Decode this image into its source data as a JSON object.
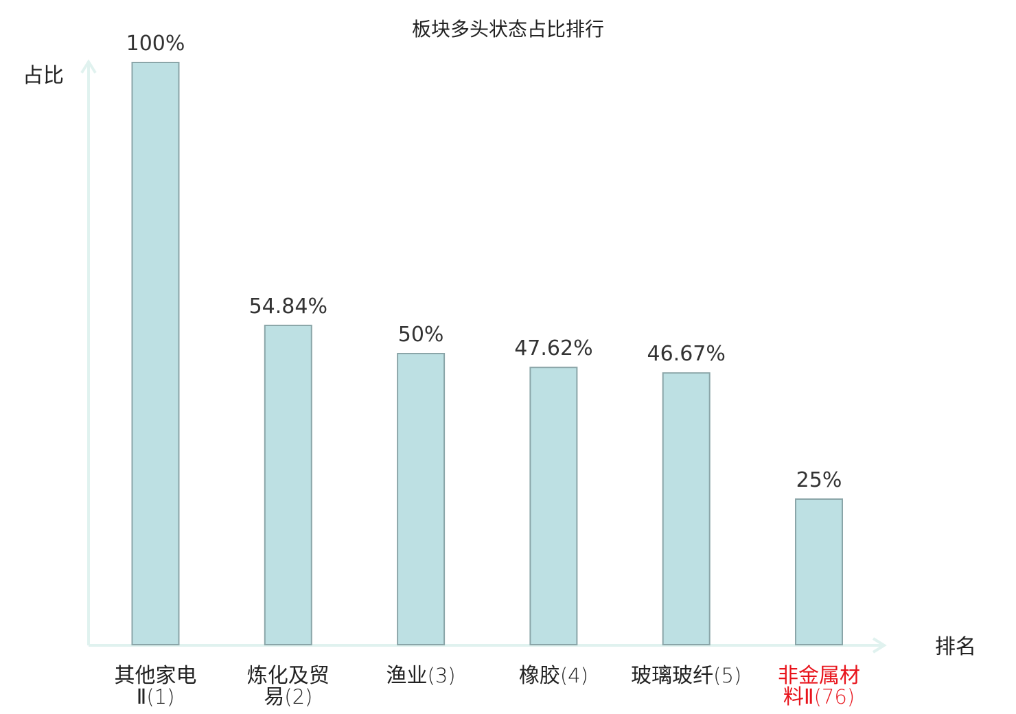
{
  "chart_data": {
    "type": "bar",
    "title": "板块多头状态占比排行",
    "ylabel": "占比",
    "xlabel": "排名",
    "ylim": [
      0,
      100
    ],
    "grid": false,
    "categories": [
      {
        "line1": "其他家电",
        "line2_name": "Ⅱ",
        "rank": "(1)",
        "label": "100%",
        "value": 100,
        "highlight": false
      },
      {
        "line1": "炼化及贸",
        "line2_name": "易",
        "rank": "(2)",
        "label": "54.84%",
        "value": 54.84,
        "highlight": false
      },
      {
        "line1": "渔业",
        "line2_name": "",
        "rank": "(3)",
        "label": "50%",
        "value": 50,
        "highlight": false
      },
      {
        "line1": "橡胶",
        "line2_name": "",
        "rank": "(4)",
        "label": "47.62%",
        "value": 47.62,
        "highlight": false
      },
      {
        "line1": "玻璃玻纤",
        "line2_name": "",
        "rank": "(5)",
        "label": "46.67%",
        "value": 46.67,
        "highlight": false
      },
      {
        "line1": "非金属材",
        "line2_name": "料Ⅱ",
        "rank": "(76)",
        "label": "25%",
        "value": 25,
        "highlight": true
      }
    ]
  },
  "colors": {
    "bar_fill": "#bde0e3",
    "bar_stroke": "#8aa5a8",
    "axis": "#e0f2ef",
    "text": "#222222",
    "highlight": "#e8141c"
  }
}
